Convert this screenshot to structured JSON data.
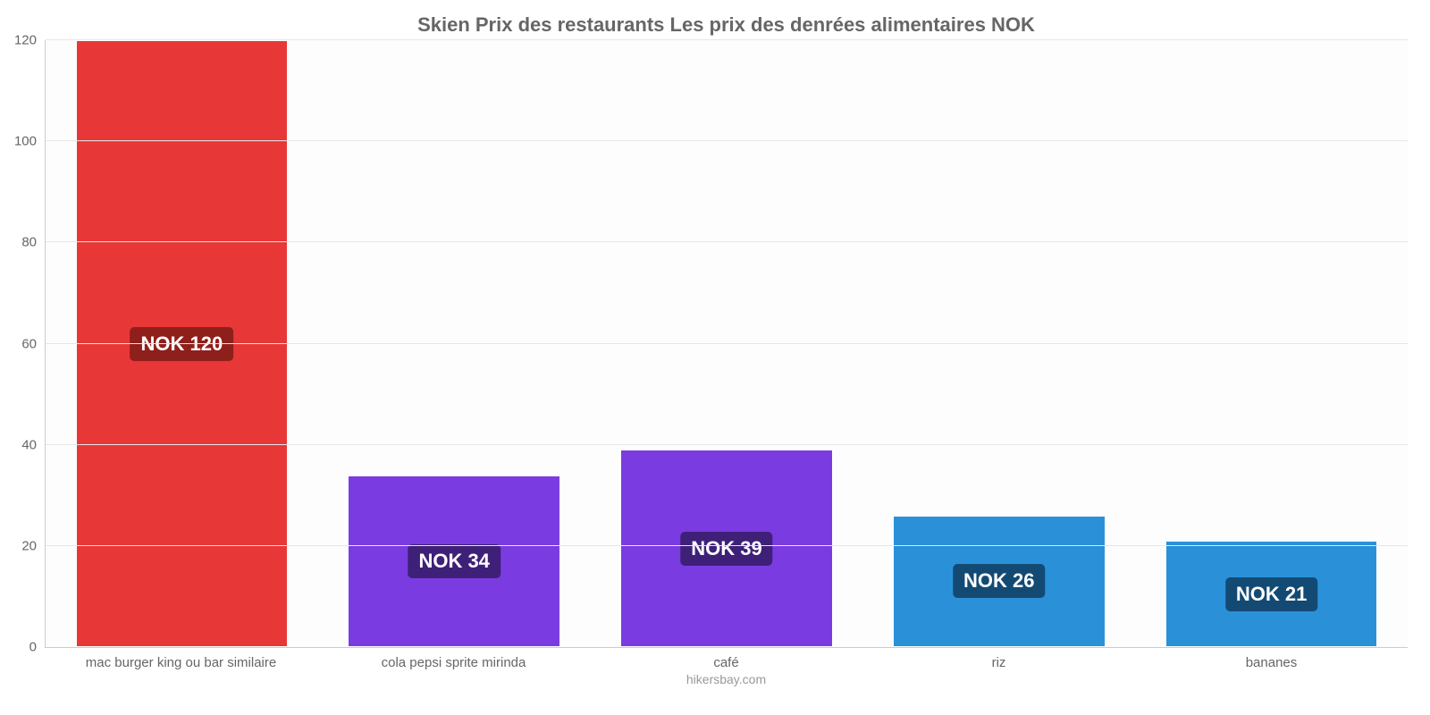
{
  "chart": {
    "type": "bar",
    "title": "Skien Prix des restaurants Les prix des denrées alimentaires NOK",
    "title_fontsize": 22,
    "title_color": "#666666",
    "attribution": "hikersbay.com",
    "background_color": "#fdfdfd",
    "grid_color": "#e6e6e6",
    "axis_color": "#cccccc",
    "tick_label_color": "#666666",
    "tick_label_fontsize": 15,
    "value_label_fontsize": 22,
    "value_label_color": "#ffffff",
    "ylim_min": 0,
    "ylim_max": 120,
    "ytick_step": 20,
    "yticks": [
      0,
      20,
      40,
      60,
      80,
      100,
      120
    ],
    "bar_width_ratio": 0.78,
    "currency_prefix": "NOK ",
    "categories": [
      {
        "label": "mac burger king ou bar similaire",
        "value": 120,
        "value_text": "NOK 120",
        "bar_color": "#e83737",
        "badge_color": "#8f1f1b",
        "badge_pos": "middle"
      },
      {
        "label": "cola pepsi sprite mirinda",
        "value": 34,
        "value_text": "NOK 34",
        "bar_color": "#7a3ce0",
        "badge_color": "#3f2078",
        "badge_pos": "center"
      },
      {
        "label": "café",
        "value": 39,
        "value_text": "NOK 39",
        "bar_color": "#7a3ce0",
        "badge_color": "#3f2078",
        "badge_pos": "center"
      },
      {
        "label": "riz",
        "value": 26,
        "value_text": "NOK 26",
        "bar_color": "#2a91d8",
        "badge_color": "#134a74",
        "badge_pos": "center"
      },
      {
        "label": "bananes",
        "value": 21,
        "value_text": "NOK 21",
        "bar_color": "#2a91d8",
        "badge_color": "#134a74",
        "badge_pos": "center"
      }
    ]
  }
}
